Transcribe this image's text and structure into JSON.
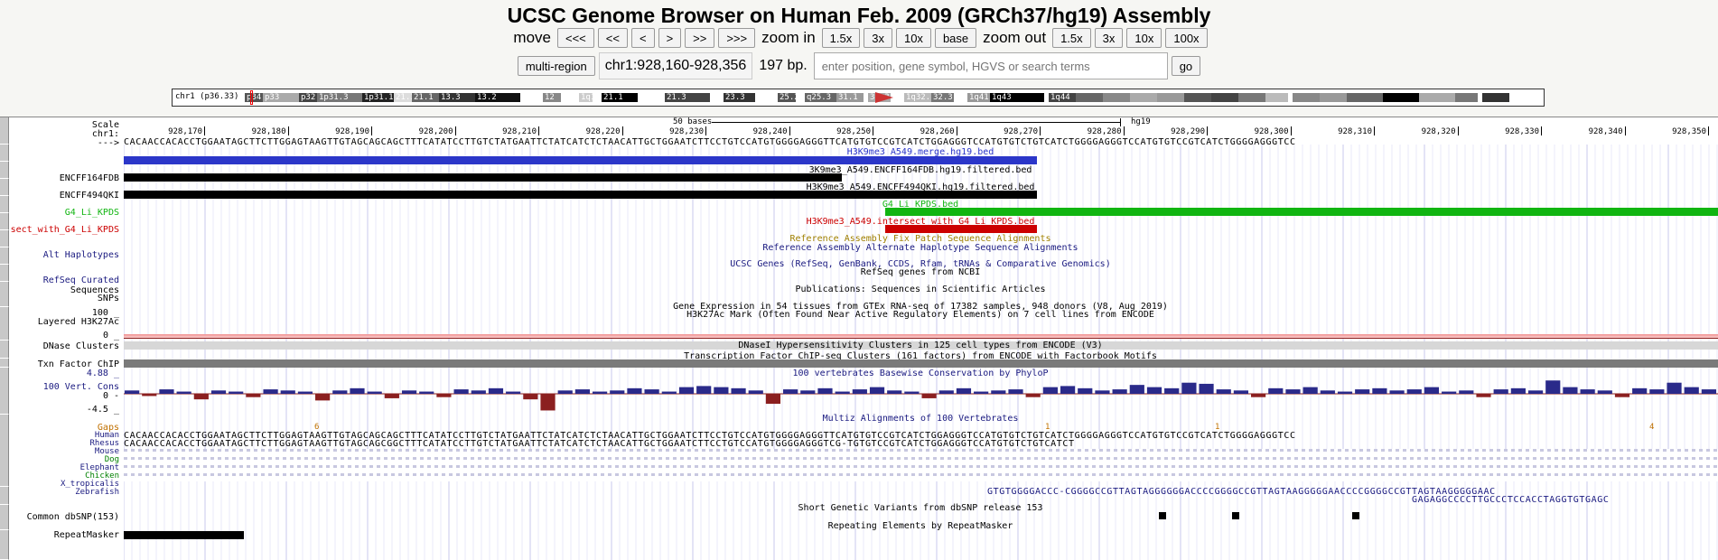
{
  "header": {
    "title": "UCSC Genome Browser on Human Feb. 2009 (GRCh37/hg19) Assembly"
  },
  "nav": {
    "move_label": "move",
    "move_buttons": [
      "<<<",
      "<<",
      "<",
      ">",
      ">>",
      ">>>"
    ],
    "zoom_in_label": "zoom in",
    "zoom_in_buttons": [
      "1.5x",
      "3x",
      "10x",
      "base"
    ],
    "zoom_out_label": "zoom out",
    "zoom_out_buttons": [
      "1.5x",
      "3x",
      "10x",
      "100x"
    ]
  },
  "position": {
    "multi_region_label": "multi-region",
    "value": "chr1:928,160-928,356",
    "size": "197 bp.",
    "search_placeholder": "enter position, gene symbol, HGVS or search terms",
    "go_label": "go"
  },
  "ideogram": {
    "chrom_label": "chr1 (p36.33)",
    "bands": [
      "p34.3",
      "p33",
      "p32.3",
      "1p31.3",
      "1p31.1",
      "21.3",
      "21.1",
      "13.3",
      "13.2",
      "12",
      "1q12",
      "21.1",
      "21.3",
      "23.3",
      "25.2",
      "q25.3",
      "31.1",
      "31.3",
      "1q32.1",
      "32.3",
      "1q41",
      "1q43",
      "1q44"
    ]
  },
  "ruler": {
    "scale_label": "Scale",
    "chrom_label": "chr1:",
    "strand_label": "--->",
    "bases_label": "50 bases",
    "assembly_label": "hg19",
    "ticks": [
      "928,170",
      "928,180",
      "928,190",
      "928,200",
      "928,210",
      "928,220",
      "928,230",
      "928,240",
      "928,250",
      "928,260",
      "928,270",
      "928,280",
      "928,290",
      "928,300",
      "928,310",
      "928,320",
      "928,330",
      "928,340",
      "928,350"
    ],
    "sequence": "CACAACCACACCTGGAATAGCTTCTTGGAGTAAGTTGTAGCAGCAGCTTTCATATCCTTGTCTATGAATTCTATCATCTCTAACATTGCTGGAATCTTCCTGTCCATGTGGGGAGGGTTCATGTGTCCGTCATCTGGAGGGTCCATGTGTCTGTCATCTGGGGAGGGTCCATGTGTCCGTCATCTGGGGAGGGTCC"
  },
  "tracks": {
    "merge_title": "H3K9me3_A549.merge.hg19.bed",
    "encff164_label": "ENCFF164FDB",
    "encff164_title": "3K9me3_A549.ENCFF164FDB.hg19.filtered.bed",
    "encff494_label": "ENCFF494QKI",
    "encff494_title": "H3K9me3_A549.ENCFF494QKI.hg19.filtered.bed",
    "g4_label": "G4_Li_KPDS",
    "g4_title": "G4_Li_KPDS.bed",
    "intersect_label": "sect_with_G4_Li_KPDS",
    "intersect_title": "H3K9me3_A549.intersect_with_G4_Li_KPDS.bed",
    "fix_patch_title": "Reference Assembly Fix Patch Sequence Alignments",
    "alt_hap_label": "Alt Haplotypes",
    "alt_hap_title": "Reference Assembly Alternate Haplotype Sequence Alignments",
    "ucsc_genes_title": "UCSC Genes (RefSeq, GenBank, CCDS, Rfam, tRNAs & Comparative Genomics)",
    "refseq_label": "RefSeq Curated",
    "refseq_title": "RefSeq genes from NCBI",
    "sequences_label": "Sequences",
    "snps_label": "SNPs",
    "publications_title": "Publications: Sequences in Scientific Articles",
    "gtex_title": "Gene Expression in 54 tissues from GTEx RNA-seq of 17382 samples, 948 donors (V8, Aug 2019)",
    "h3k27_title": "H3K27Ac Mark (Often Found Near Active Regulatory Elements) on 7 cell lines from ENCODE",
    "h3k27_top": "100 _",
    "h3k27_label": "Layered H3K27Ac",
    "h3k27_bottom": "0 _",
    "dnase_label": "DNase Clusters",
    "dnase_title": "DNaseI Hypersensitivity Clusters in 125 cell types from ENCODE (V3)",
    "txn_label": "Txn Factor ChIP",
    "txn_title": "Transcription Factor ChIP-seq Clusters (161 factors) from ENCODE with Factorbook Motifs",
    "cons_top": "4.88 _",
    "cons_title": "100 vertebrates Basewise Conservation by PhyloP",
    "cons_label": "100 Vert. Cons",
    "cons_zero": "0 -",
    "cons_bottom": "-4.5 _",
    "multiz_title": "Multiz Alignments of 100 Vertebrates",
    "gaps_label": "Gaps",
    "species": [
      "Human",
      "Rhesus",
      "Mouse",
      "Dog",
      "Elephant",
      "Chicken",
      "X_tropicalis",
      "Zebrafish"
    ],
    "rhesus_seq": "CACAACCACACCTGGAATAGCTTCTTGGAGTAAGTTGTAGCAGCGGCTTTCATATCCTTGTCTATGAATTCTATCATCTCTAACATTGCTGGAATCTTCCTGTCCATGTGGGGAGGGTCG-TGTGTCCGTCATCTGGAGGGTCCATGTGTCTGTCATCT",
    "xtrop_seq": "GTGTGGGGACCC-CGGGGCCGTTAGTAGGGGGGACCCCGGGGCCGTTAGTAAGGGGGAACCCCGGGGCCGTTAGTAAGGGGGAAC",
    "zfish_seq": "GAGAGGCCCCTTGCCCTCCACCTAGGTGTGAGC",
    "gap_marks": [
      "6",
      "1",
      "1",
      "4"
    ],
    "snp_label": "Common dbSNP(153)",
    "snp_title": "Short Genetic Variants from dbSNP release 153",
    "rmsk_title": "Repeating Elements by RepeatMasker",
    "rmsk_label": "RepeatMasker"
  },
  "colors": {
    "blue_bar": "#2b36c9",
    "green_bar": "#11b511",
    "red_bar": "#cc0000",
    "cons_pos": "#2a2a8a",
    "cons_neg": "#8b1f1f"
  },
  "conservation": {
    "values": [
      0.3,
      -0.2,
      0.4,
      0.2,
      -0.5,
      0.3,
      0.2,
      -0.3,
      0.4,
      0.3,
      0.2,
      -0.6,
      0.3,
      0.5,
      0.2,
      -0.4,
      0.3,
      0.2,
      -0.3,
      0.4,
      0.3,
      0.5,
      0.2,
      -0.5,
      -1.5,
      0.3,
      0.4,
      0.2,
      0.3,
      0.5,
      0.4,
      0.2,
      0.6,
      0.7,
      0.6,
      0.5,
      0.3,
      -0.9,
      0.4,
      0.3,
      0.5,
      0.2,
      0.4,
      0.6,
      0.3,
      0.2,
      -0.4,
      0.3,
      0.5,
      0.2,
      0.3,
      0.4,
      -0.3,
      0.6,
      0.7,
      0.5,
      0.3,
      0.4,
      0.8,
      0.6,
      0.5,
      1.0,
      0.9,
      0.4,
      0.3,
      -0.3,
      0.5,
      0.4,
      0.6,
      0.3,
      0.2,
      0.4,
      0.5,
      0.3,
      0.4,
      0.6,
      0.2,
      0.3,
      -0.3,
      0.4,
      0.5,
      0.3,
      1.2,
      0.6,
      0.4,
      0.3,
      -0.3,
      0.5,
      0.4,
      1.0,
      0.6,
      0.4
    ],
    "ymax": 4.88,
    "ymin": -4.5
  }
}
